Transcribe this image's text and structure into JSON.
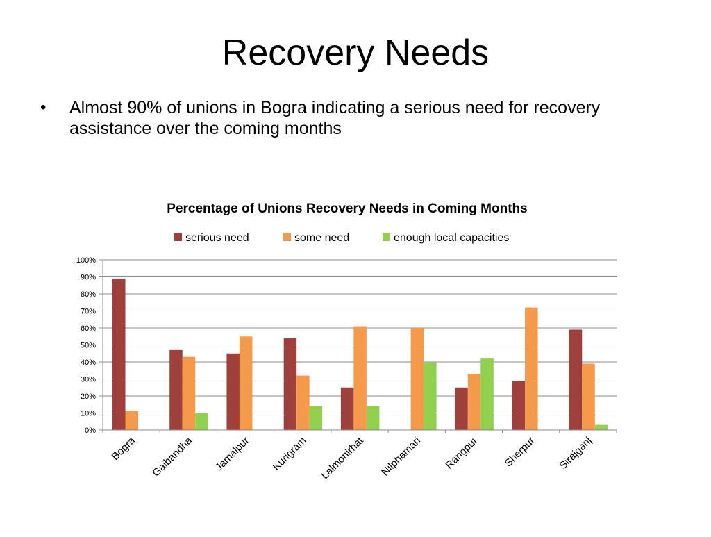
{
  "slide": {
    "title": "Recovery Needs",
    "bullet": "Almost 90% of unions in Bogra indicating a serious need for recovery assistance over the coming months"
  },
  "colors": {
    "serious_need": "#a0403c",
    "some_need": "#f59a4a",
    "enough_local_capacities": "#92d050",
    "gridline": "#8c8c8c",
    "axis": "#8c8c8c"
  },
  "chart_data": {
    "type": "bar",
    "title": "Percentage of Unions Recovery Needs in Coming Months",
    "xlabel": "",
    "ylabel": "",
    "ylim": [
      0,
      100
    ],
    "y_ticks": [
      "0%",
      "10%",
      "20%",
      "30%",
      "40%",
      "50%",
      "60%",
      "70%",
      "80%",
      "90%",
      "100%"
    ],
    "grid": true,
    "legend_position": "top",
    "categories": [
      "Bogra",
      "Gaibandha",
      "Jamalpur",
      "Kurigram",
      "Lalmonirhat",
      "Nilphamari",
      "Rangpur",
      "Sherpur",
      "Sirajganj"
    ],
    "series": [
      {
        "name": "serious need",
        "values": [
          89,
          47,
          45,
          54,
          25,
          0,
          25,
          29,
          59
        ]
      },
      {
        "name": "some need",
        "values": [
          11,
          43,
          55,
          32,
          61,
          60,
          33,
          72,
          39
        ]
      },
      {
        "name": "enough local capacities",
        "values": [
          0,
          10,
          0,
          14,
          14,
          40,
          42,
          0,
          3
        ]
      }
    ]
  }
}
